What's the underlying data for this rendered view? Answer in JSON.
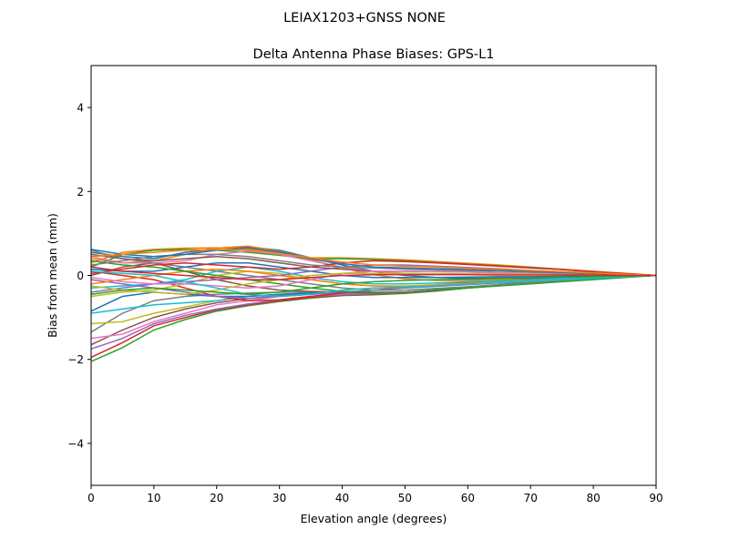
{
  "chart_data": {
    "type": "line",
    "suptitle": "LEIAX1203+GNSS  NONE",
    "title": "Delta Antenna Phase Biases: GPS-L1",
    "xlabel": "Elevation angle (degrees)",
    "ylabel": "Bias from mean (mm)",
    "xlim": [
      0,
      90
    ],
    "ylim": [
      -5,
      5
    ],
    "xticks": [
      0,
      10,
      20,
      30,
      40,
      50,
      60,
      70,
      80,
      90
    ],
    "yticks": [
      -4,
      -2,
      0,
      2,
      4
    ],
    "ytick_labels": [
      "−4",
      "−2",
      "0",
      "2",
      "4"
    ],
    "grid": false,
    "colors": [
      "#1f77b4",
      "#ff7f0e",
      "#2ca02c",
      "#d62728",
      "#9467bd",
      "#8c564b",
      "#e377c2",
      "#7f7f7f",
      "#bcbd22",
      "#17becf"
    ],
    "x": [
      0,
      5,
      10,
      15,
      20,
      25,
      30,
      35,
      40,
      45,
      50,
      55,
      60,
      65,
      70,
      75,
      80,
      85,
      90
    ],
    "series": [
      {
        "values": [
          0.55,
          0.45,
          0.4,
          0.55,
          0.65,
          0.68,
          0.6,
          0.42,
          0.25,
          0.1,
          0,
          -0.05,
          -0.07,
          -0.06,
          -0.05,
          -0.04,
          -0.02,
          -0.01,
          0
        ]
      },
      {
        "values": [
          0.4,
          0.3,
          0.35,
          0.5,
          0.65,
          0.7,
          0.58,
          0.38,
          0.18,
          0.02,
          -0.08,
          -0.12,
          -0.12,
          -0.1,
          -0.08,
          -0.05,
          -0.03,
          -0.01,
          0
        ]
      },
      {
        "values": [
          -2.05,
          -1.72,
          -1.3,
          -1.05,
          -0.85,
          -0.72,
          -0.62,
          -0.54,
          -0.48,
          -0.46,
          -0.43,
          -0.37,
          -0.3,
          -0.24,
          -0.18,
          -0.12,
          -0.07,
          -0.03,
          0
        ]
      },
      {
        "values": [
          -1.95,
          -1.6,
          -1.2,
          -1.0,
          -0.82,
          -0.7,
          -0.6,
          -0.52,
          -0.47,
          -0.45,
          -0.42,
          -0.36,
          -0.3,
          -0.24,
          -0.18,
          -0.12,
          -0.07,
          -0.03,
          0
        ]
      },
      {
        "values": [
          -1.75,
          -1.5,
          -1.15,
          -0.95,
          -0.8,
          -0.68,
          -0.58,
          -0.5,
          -0.46,
          -0.44,
          -0.41,
          -0.35,
          -0.29,
          -0.23,
          -0.17,
          -0.11,
          -0.07,
          -0.03,
          0
        ]
      },
      {
        "values": [
          -1.65,
          -1.3,
          -1.0,
          -0.8,
          -0.65,
          -0.55,
          -0.48,
          -0.44,
          -0.42,
          -0.42,
          -0.4,
          -0.34,
          -0.28,
          -0.22,
          -0.16,
          -0.1,
          -0.06,
          -0.03,
          0
        ]
      },
      {
        "values": [
          -1.5,
          -1.4,
          -1.1,
          -0.9,
          -0.7,
          -0.6,
          -0.5,
          -0.45,
          -0.43,
          -0.42,
          -0.4,
          -0.34,
          -0.28,
          -0.22,
          -0.16,
          -0.1,
          -0.06,
          -0.03,
          0
        ]
      },
      {
        "values": [
          -1.35,
          -0.9,
          -0.6,
          -0.5,
          -0.45,
          -0.42,
          -0.4,
          -0.4,
          -0.41,
          -0.42,
          -0.4,
          -0.34,
          -0.28,
          -0.22,
          -0.16,
          -0.1,
          -0.06,
          -0.03,
          0
        ]
      },
      {
        "values": [
          -1.15,
          -1.1,
          -0.9,
          -0.75,
          -0.6,
          -0.5,
          -0.45,
          -0.42,
          -0.41,
          -0.42,
          -0.4,
          -0.34,
          -0.28,
          -0.22,
          -0.16,
          -0.1,
          -0.06,
          -0.03,
          0
        ]
      },
      {
        "values": [
          -0.9,
          -0.8,
          -0.7,
          -0.65,
          -0.6,
          -0.5,
          -0.45,
          -0.42,
          -0.41,
          -0.42,
          -0.4,
          -0.34,
          -0.28,
          -0.22,
          -0.16,
          -0.1,
          -0.06,
          -0.03,
          0
        ]
      },
      {
        "values": [
          -0.85,
          -0.5,
          -0.4,
          -0.45,
          -0.5,
          -0.5,
          -0.45,
          -0.42,
          -0.41,
          -0.42,
          -0.4,
          -0.34,
          -0.28,
          -0.22,
          -0.16,
          -0.1,
          -0.06,
          -0.03,
          0
        ]
      },
      {
        "values": [
          0.3,
          0.55,
          0.62,
          0.65,
          0.66,
          0.63,
          0.55,
          0.42,
          0.42,
          0.4,
          0.37,
          0.33,
          0.29,
          0.25,
          0.2,
          0.15,
          0.1,
          0.05,
          0
        ]
      },
      {
        "values": [
          0.2,
          0.5,
          0.6,
          0.62,
          0.6,
          0.55,
          0.48,
          0.4,
          0.4,
          0.38,
          0.35,
          0.31,
          0.27,
          0.23,
          0.19,
          0.14,
          0.09,
          0.04,
          0
        ]
      },
      {
        "values": [
          0.1,
          0.0,
          -0.1,
          -0.3,
          -0.5,
          -0.6,
          -0.58,
          -0.5,
          -0.42,
          -0.35,
          -0.28,
          -0.22,
          -0.17,
          -0.13,
          -0.09,
          -0.06,
          -0.03,
          -0.01,
          0
        ]
      },
      {
        "values": [
          -0.1,
          -0.2,
          -0.3,
          -0.4,
          -0.5,
          -0.55,
          -0.5,
          -0.45,
          -0.4,
          -0.35,
          -0.3,
          -0.26,
          -0.22,
          -0.18,
          -0.14,
          -0.1,
          -0.06,
          -0.03,
          0
        ]
      },
      {
        "values": [
          0.0,
          0.2,
          0.3,
          0.1,
          -0.1,
          -0.25,
          -0.35,
          -0.38,
          -0.4,
          -0.42,
          -0.4,
          -0.35,
          -0.3,
          -0.24,
          -0.18,
          -0.12,
          -0.07,
          -0.03,
          0
        ]
      },
      {
        "values": [
          0.45,
          0.3,
          0.3,
          0.35,
          0.5,
          0.58,
          0.5,
          0.35,
          0.2,
          0.1,
          0.05,
          0.04,
          0.03,
          0.03,
          0.02,
          0.02,
          0.01,
          0.01,
          0
        ]
      },
      {
        "values": [
          0.6,
          0.4,
          0.3,
          0.2,
          0.1,
          0.0,
          -0.1,
          -0.2,
          -0.3,
          -0.35,
          -0.35,
          -0.31,
          -0.27,
          -0.22,
          -0.17,
          -0.12,
          -0.08,
          -0.04,
          0
        ]
      },
      {
        "values": [
          -0.5,
          -0.4,
          -0.35,
          -0.2,
          0.0,
          0.1,
          0.05,
          -0.1,
          -0.2,
          -0.25,
          -0.25,
          -0.22,
          -0.19,
          -0.16,
          -0.12,
          -0.09,
          -0.06,
          -0.03,
          0
        ]
      },
      {
        "values": [
          -0.3,
          -0.25,
          -0.2,
          -0.1,
          0.1,
          0.2,
          0.1,
          -0.05,
          -0.15,
          -0.2,
          -0.2,
          -0.18,
          -0.15,
          -0.13,
          -0.1,
          -0.07,
          -0.05,
          -0.02,
          0
        ]
      },
      {
        "values": [
          0.15,
          0.1,
          0.1,
          0.2,
          0.3,
          0.3,
          0.2,
          0.1,
          0.0,
          -0.05,
          -0.05,
          -0.05,
          -0.04,
          -0.03,
          -0.03,
          -0.02,
          -0.01,
          -0.01,
          0
        ]
      },
      {
        "values": [
          -0.2,
          -0.1,
          0.0,
          0.1,
          0.15,
          0.1,
          0.0,
          -0.1,
          -0.2,
          -0.25,
          -0.27,
          -0.24,
          -0.2,
          -0.17,
          -0.13,
          -0.1,
          -0.07,
          -0.03,
          0
        ]
      },
      {
        "values": [
          0.35,
          0.25,
          0.2,
          0.1,
          0.0,
          -0.1,
          -0.2,
          -0.3,
          -0.38,
          -0.4,
          -0.4,
          -0.35,
          -0.3,
          -0.25,
          -0.2,
          -0.15,
          -0.1,
          -0.05,
          0
        ]
      },
      {
        "values": [
          0.05,
          0.15,
          0.25,
          0.3,
          0.25,
          0.2,
          0.15,
          0.2,
          0.3,
          0.35,
          0.33,
          0.3,
          0.26,
          0.22,
          0.18,
          0.14,
          0.09,
          0.05,
          0
        ]
      },
      {
        "values": [
          -0.4,
          -0.3,
          -0.2,
          -0.15,
          -0.1,
          -0.05,
          0.0,
          0.1,
          0.2,
          0.25,
          0.25,
          0.22,
          0.19,
          0.16,
          0.12,
          0.09,
          0.06,
          0.03,
          0
        ]
      },
      {
        "values": [
          0.5,
          0.4,
          0.35,
          0.4,
          0.45,
          0.4,
          0.3,
          0.2,
          0.15,
          0.1,
          0.1,
          0.09,
          0.08,
          0.06,
          0.05,
          0.04,
          0.03,
          0.01,
          0
        ]
      },
      {
        "values": [
          -0.05,
          -0.15,
          -0.2,
          -0.2,
          -0.25,
          -0.3,
          -0.25,
          -0.1,
          0.05,
          0.1,
          0.1,
          0.09,
          0.08,
          0.06,
          0.05,
          0.04,
          0.03,
          0.01,
          0
        ]
      },
      {
        "values": [
          0.25,
          0.35,
          0.45,
          0.5,
          0.5,
          0.45,
          0.35,
          0.25,
          0.2,
          0.18,
          0.15,
          0.13,
          0.11,
          0.1,
          0.08,
          0.06,
          0.04,
          0.02,
          0
        ]
      },
      {
        "values": [
          -0.25,
          -0.35,
          -0.4,
          -0.45,
          -0.35,
          -0.2,
          -0.1,
          0.0,
          0.05,
          0.05,
          0.05,
          0.04,
          0.04,
          0.03,
          0.03,
          0.02,
          0.01,
          0.01,
          0
        ]
      },
      {
        "values": [
          0.1,
          0.05,
          0.0,
          -0.15,
          -0.3,
          -0.45,
          -0.5,
          -0.45,
          -0.35,
          -0.3,
          -0.28,
          -0.25,
          -0.21,
          -0.17,
          -0.14,
          -0.1,
          -0.07,
          -0.03,
          0
        ]
      },
      {
        "values": [
          0.62,
          0.5,
          0.45,
          0.5,
          0.6,
          0.66,
          0.56,
          0.4,
          0.28,
          0.2,
          0.18,
          0.16,
          0.14,
          0.12,
          0.1,
          0.07,
          0.05,
          0.02,
          0
        ]
      },
      {
        "values": [
          0.45,
          0.5,
          0.55,
          0.6,
          0.62,
          0.6,
          0.52,
          0.42,
          0.32,
          0.25,
          0.22,
          0.2,
          0.17,
          0.15,
          0.12,
          0.09,
          0.06,
          0.03,
          0
        ]
      },
      {
        "values": [
          -0.45,
          -0.35,
          -0.3,
          -0.35,
          -0.4,
          -0.45,
          -0.4,
          -0.3,
          -0.2,
          -0.15,
          -0.12,
          -0.1,
          -0.09,
          -0.07,
          -0.06,
          -0.04,
          -0.03,
          -0.01,
          0
        ]
      },
      {
        "values": [
          0.2,
          0.1,
          0.05,
          0.0,
          -0.05,
          -0.1,
          -0.1,
          -0.05,
          0.0,
          0.02,
          0.02,
          0.02,
          0.02,
          0.01,
          0.01,
          0.01,
          0.01,
          0,
          0
        ]
      }
    ]
  }
}
